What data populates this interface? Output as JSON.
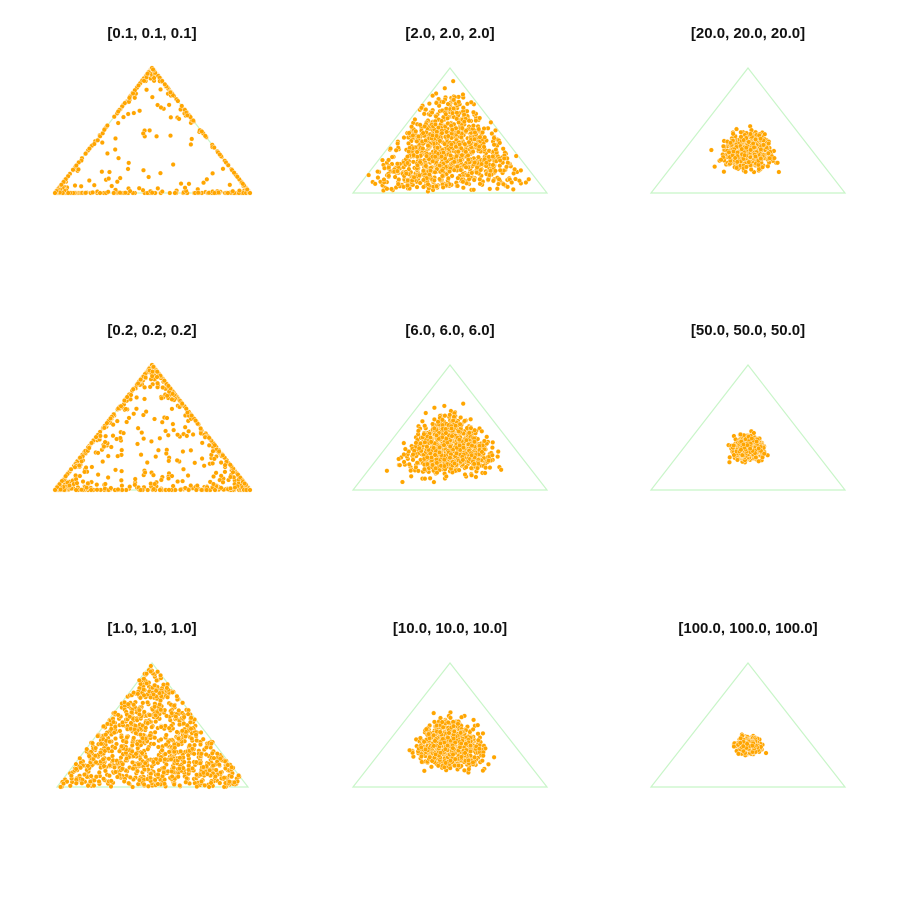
{
  "figure": {
    "triangle_color": "#c8f5c8",
    "point_color": "#ffa500",
    "point_edge_color": "#ffffff",
    "grid": false,
    "axes_visible": false
  },
  "chart_data": [
    {
      "type": "scatter",
      "title": "[0.1, 0.1, 0.1]",
      "alpha": [
        0.1,
        0.1,
        0.1
      ],
      "distribution": "Dirichlet samples on the 2-simplex"
    },
    {
      "type": "scatter",
      "title": "[2.0, 2.0, 2.0]",
      "alpha": [
        2.0,
        2.0,
        2.0
      ],
      "distribution": "Dirichlet samples on the 2-simplex"
    },
    {
      "type": "scatter",
      "title": "[20.0, 20.0, 20.0]",
      "alpha": [
        20.0,
        20.0,
        20.0
      ],
      "distribution": "Dirichlet samples on the 2-simplex"
    },
    {
      "type": "scatter",
      "title": "[0.2, 0.2, 0.2]",
      "alpha": [
        0.2,
        0.2,
        0.2
      ],
      "distribution": "Dirichlet samples on the 2-simplex"
    },
    {
      "type": "scatter",
      "title": "[6.0, 6.0, 6.0]",
      "alpha": [
        6.0,
        6.0,
        6.0
      ],
      "distribution": "Dirichlet samples on the 2-simplex"
    },
    {
      "type": "scatter",
      "title": "[50.0, 50.0, 50.0]",
      "alpha": [
        50.0,
        50.0,
        50.0
      ],
      "distribution": "Dirichlet samples on the 2-simplex"
    },
    {
      "type": "scatter",
      "title": "[1.0, 1.0, 1.0]",
      "alpha": [
        1.0,
        1.0,
        1.0
      ],
      "distribution": "Dirichlet samples on the 2-simplex"
    },
    {
      "type": "scatter",
      "title": "[10.0, 10.0, 10.0]",
      "alpha": [
        10.0,
        10.0,
        10.0
      ],
      "distribution": "Dirichlet samples on the 2-simplex"
    },
    {
      "type": "scatter",
      "title": "[100.0, 100.0, 100.0]",
      "alpha": [
        100.0,
        100.0,
        100.0
      ],
      "distribution": "Dirichlet samples on the 2-simplex"
    }
  ]
}
